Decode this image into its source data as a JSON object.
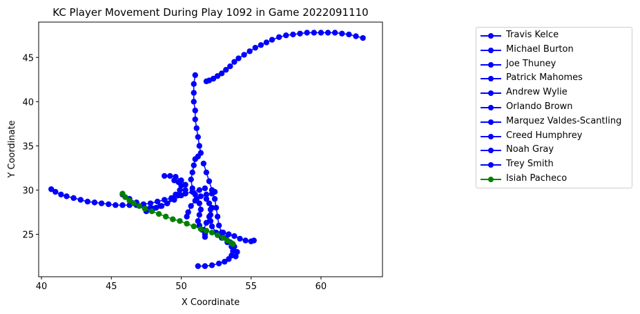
{
  "chart_data": {
    "type": "scatter",
    "title": "KC Player Movement During Play 1092 in Game 2022091110",
    "xlabel": "X Coordinate",
    "ylabel": "Y Coordinate",
    "xlim": [
      39.8,
      64.4
    ],
    "ylim": [
      20.2,
      49.0
    ],
    "x_ticks": [
      40,
      45,
      50,
      55,
      60
    ],
    "y_ticks": [
      25,
      30,
      35,
      40,
      45
    ],
    "grid": false,
    "legend_placement": "outside right",
    "colors": {
      "blue": "#0000ff",
      "green": "#008000"
    },
    "series": [
      {
        "name": "Travis Kelce",
        "color": "#0000ff",
        "points": [
          [
            51.8,
            42.3
          ],
          [
            52.0,
            42.4
          ],
          [
            52.3,
            42.6
          ],
          [
            52.6,
            42.9
          ],
          [
            52.9,
            43.2
          ],
          [
            53.2,
            43.6
          ],
          [
            53.5,
            44.0
          ],
          [
            53.8,
            44.5
          ],
          [
            54.1,
            44.9
          ],
          [
            54.5,
            45.3
          ],
          [
            54.9,
            45.7
          ],
          [
            55.3,
            46.1
          ],
          [
            55.7,
            46.4
          ],
          [
            56.1,
            46.7
          ],
          [
            56.5,
            47.0
          ],
          [
            57.0,
            47.3
          ],
          [
            57.5,
            47.5
          ],
          [
            58.0,
            47.6
          ],
          [
            58.5,
            47.7
          ],
          [
            59.0,
            47.8
          ],
          [
            59.5,
            47.8
          ],
          [
            60.0,
            47.8
          ],
          [
            60.5,
            47.8
          ],
          [
            61.0,
            47.8
          ],
          [
            61.5,
            47.7
          ],
          [
            62.0,
            47.6
          ],
          [
            62.5,
            47.4
          ],
          [
            63.0,
            47.2
          ]
        ]
      },
      {
        "name": "Michael Burton",
        "color": "#0000ff",
        "points": [
          [
            51.0,
            43.0
          ],
          [
            50.9,
            42.0
          ],
          [
            50.9,
            41.0
          ],
          [
            50.9,
            40.0
          ],
          [
            51.0,
            39.0
          ],
          [
            51.0,
            38.0
          ],
          [
            51.1,
            37.0
          ],
          [
            51.2,
            36.0
          ],
          [
            51.3,
            35.0
          ],
          [
            51.4,
            34.2
          ],
          [
            51.2,
            33.8
          ],
          [
            51.0,
            33.5
          ],
          [
            50.9,
            32.8
          ],
          [
            50.8,
            32.0
          ],
          [
            50.7,
            31.2
          ],
          [
            50.8,
            30.2
          ],
          [
            51.0,
            29.5
          ],
          [
            51.1,
            29.0
          ],
          [
            51.3,
            28.5
          ],
          [
            51.4,
            27.8
          ],
          [
            51.3,
            27.2
          ],
          [
            51.2,
            26.5
          ],
          [
            51.3,
            26.0
          ],
          [
            51.5,
            25.5
          ],
          [
            51.7,
            25.0
          ]
        ]
      },
      {
        "name": "Joe Thuney",
        "color": "#0000ff",
        "points": [
          [
            51.6,
            33.0
          ],
          [
            51.8,
            32.0
          ],
          [
            52.0,
            31.0
          ],
          [
            52.2,
            30.0
          ],
          [
            52.4,
            29.0
          ],
          [
            52.5,
            28.0
          ],
          [
            52.6,
            27.0
          ],
          [
            52.7,
            26.0
          ],
          [
            52.9,
            25.2
          ],
          [
            53.2,
            24.6
          ],
          [
            53.5,
            24.1
          ],
          [
            53.8,
            23.6
          ],
          [
            54.0,
            23.0
          ],
          [
            53.9,
            22.5
          ]
        ]
      },
      {
        "name": "Patrick Mahomes",
        "color": "#0000ff",
        "points": [
          [
            40.7,
            30.1
          ],
          [
            41.0,
            29.8
          ],
          [
            41.4,
            29.5
          ],
          [
            41.8,
            29.3
          ],
          [
            42.3,
            29.1
          ],
          [
            42.8,
            28.9
          ],
          [
            43.3,
            28.7
          ],
          [
            43.8,
            28.6
          ],
          [
            44.3,
            28.5
          ],
          [
            44.8,
            28.4
          ],
          [
            45.3,
            28.3
          ],
          [
            45.8,
            28.3
          ],
          [
            46.3,
            28.3
          ],
          [
            46.8,
            28.3
          ],
          [
            47.3,
            28.4
          ],
          [
            47.8,
            28.5
          ],
          [
            48.3,
            28.7
          ],
          [
            48.8,
            28.9
          ],
          [
            49.3,
            29.1
          ],
          [
            49.8,
            29.4
          ],
          [
            50.3,
            29.6
          ],
          [
            50.8,
            29.8
          ],
          [
            51.3,
            30.0
          ],
          [
            51.7,
            30.2
          ]
        ]
      },
      {
        "name": "Andrew Wylie",
        "color": "#0000ff",
        "points": [
          [
            47.5,
            27.6
          ],
          [
            48.0,
            27.9
          ],
          [
            48.5,
            28.2
          ],
          [
            49.0,
            28.5
          ],
          [
            49.5,
            28.9
          ],
          [
            50.0,
            29.4
          ],
          [
            50.3,
            30.0
          ],
          [
            50.3,
            30.6
          ],
          [
            50.0,
            31.1
          ],
          [
            49.6,
            31.5
          ],
          [
            49.2,
            31.6
          ],
          [
            48.8,
            31.6
          ]
        ]
      },
      {
        "name": "Orlando Brown",
        "color": "#0000ff",
        "points": [
          [
            45.8,
            29.5
          ],
          [
            46.3,
            29.0
          ],
          [
            46.8,
            28.6
          ],
          [
            47.3,
            28.2
          ],
          [
            47.8,
            28.0
          ],
          [
            48.2,
            28.0
          ],
          [
            48.6,
            28.2
          ],
          [
            49.0,
            28.5
          ],
          [
            49.3,
            29.0
          ],
          [
            49.6,
            29.5
          ],
          [
            49.9,
            30.0
          ],
          [
            50.0,
            30.5
          ],
          [
            49.8,
            30.9
          ],
          [
            49.5,
            31.1
          ]
        ]
      },
      {
        "name": "Marquez Valdes-Scantling",
        "color": "#0000ff",
        "points": [
          [
            50.4,
            27.0
          ],
          [
            50.5,
            27.5
          ],
          [
            50.7,
            28.2
          ],
          [
            51.0,
            28.8
          ],
          [
            51.4,
            29.3
          ],
          [
            51.8,
            29.5
          ],
          [
            52.2,
            29.6
          ],
          [
            52.4,
            29.8
          ]
        ]
      },
      {
        "name": "Creed Humphrey",
        "color": "#0000ff",
        "points": [
          [
            51.2,
            21.4
          ],
          [
            51.7,
            21.4
          ],
          [
            52.2,
            21.5
          ],
          [
            52.7,
            21.7
          ],
          [
            53.1,
            21.9
          ],
          [
            53.4,
            22.2
          ],
          [
            53.6,
            22.6
          ],
          [
            53.7,
            23.1
          ],
          [
            53.6,
            23.6
          ],
          [
            53.3,
            24.1
          ],
          [
            52.9,
            24.6
          ],
          [
            52.5,
            25.2
          ],
          [
            52.2,
            25.9
          ],
          [
            52.1,
            26.5
          ],
          [
            52.1,
            27.2
          ],
          [
            52.2,
            28.0
          ]
        ]
      },
      {
        "name": "Noah Gray",
        "color": "#0000ff",
        "points": [
          [
            53.0,
            25.2
          ],
          [
            53.4,
            25.0
          ],
          [
            53.8,
            24.8
          ],
          [
            54.2,
            24.5
          ],
          [
            54.6,
            24.3
          ],
          [
            55.0,
            24.2
          ],
          [
            55.2,
            24.3
          ]
        ]
      },
      {
        "name": "Trey Smith",
        "color": "#0000ff",
        "points": [
          [
            51.7,
            24.7
          ],
          [
            51.6,
            25.5
          ],
          [
            51.8,
            26.3
          ],
          [
            52.0,
            27.0
          ],
          [
            52.1,
            27.8
          ],
          [
            52.0,
            28.5
          ],
          [
            51.8,
            29.0
          ]
        ]
      },
      {
        "name": "Isiah Pacheco",
        "color": "#008000",
        "points": [
          [
            45.8,
            29.6
          ],
          [
            46.0,
            29.2
          ],
          [
            46.3,
            28.8
          ],
          [
            46.6,
            28.5
          ],
          [
            47.0,
            28.2
          ],
          [
            47.4,
            27.9
          ],
          [
            47.9,
            27.6
          ],
          [
            48.4,
            27.3
          ],
          [
            48.9,
            27.0
          ],
          [
            49.4,
            26.7
          ],
          [
            49.9,
            26.5
          ],
          [
            50.4,
            26.2
          ],
          [
            50.9,
            25.9
          ],
          [
            51.4,
            25.6
          ],
          [
            51.8,
            25.4
          ],
          [
            52.2,
            25.2
          ],
          [
            52.6,
            24.9
          ],
          [
            53.0,
            24.6
          ],
          [
            53.3,
            24.3
          ],
          [
            53.6,
            24.0
          ],
          [
            53.7,
            23.9
          ]
        ]
      }
    ]
  }
}
